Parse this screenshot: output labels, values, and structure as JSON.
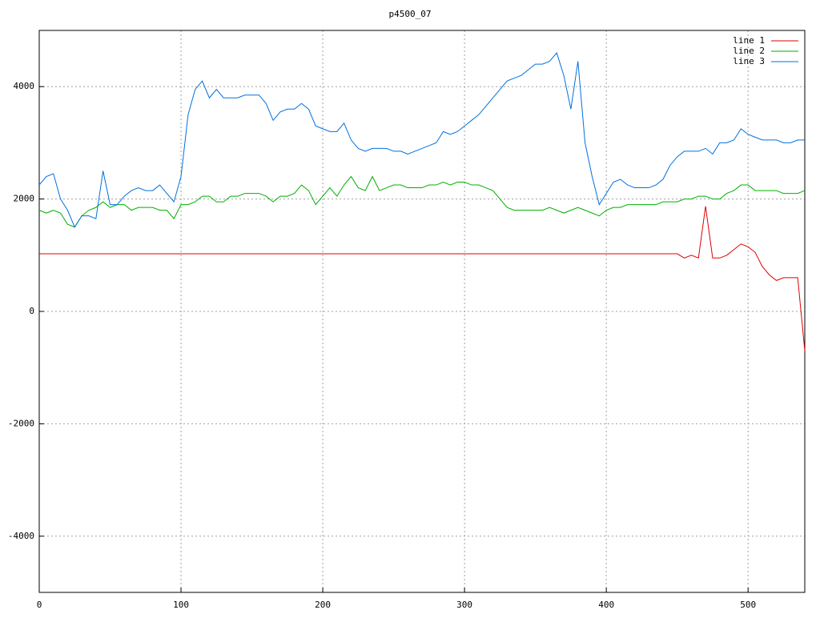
{
  "chart_data": {
    "type": "line",
    "title": "p4500_07",
    "x": [
      0,
      5,
      10,
      15,
      20,
      25,
      30,
      35,
      40,
      45,
      50,
      55,
      60,
      65,
      70,
      75,
      80,
      85,
      90,
      95,
      100,
      105,
      110,
      115,
      120,
      125,
      130,
      135,
      140,
      145,
      150,
      155,
      160,
      165,
      170,
      175,
      180,
      185,
      190,
      195,
      200,
      205,
      210,
      215,
      220,
      225,
      230,
      235,
      240,
      245,
      250,
      255,
      260,
      265,
      270,
      275,
      280,
      285,
      290,
      295,
      300,
      305,
      310,
      315,
      320,
      325,
      330,
      335,
      340,
      345,
      350,
      355,
      360,
      365,
      370,
      375,
      380,
      385,
      390,
      395,
      400,
      405,
      410,
      415,
      420,
      425,
      430,
      435,
      440,
      445,
      450,
      455,
      460,
      465,
      470,
      475,
      480,
      485,
      490,
      495,
      500,
      505,
      510,
      515,
      520,
      525,
      530,
      535,
      540
    ],
    "series": [
      {
        "name": "line 1",
        "color": "#e00000",
        "values": [
          1025,
          1025,
          1025,
          1025,
          1025,
          1025,
          1025,
          1025,
          1025,
          1025,
          1025,
          1025,
          1025,
          1025,
          1025,
          1025,
          1025,
          1025,
          1025,
          1025,
          1025,
          1025,
          1025,
          1025,
          1025,
          1025,
          1025,
          1025,
          1025,
          1025,
          1025,
          1025,
          1025,
          1025,
          1025,
          1025,
          1025,
          1025,
          1025,
          1025,
          1025,
          1025,
          1025,
          1025,
          1025,
          1025,
          1025,
          1025,
          1025,
          1025,
          1025,
          1025,
          1025,
          1025,
          1025,
          1025,
          1025,
          1025,
          1025,
          1025,
          1025,
          1025,
          1025,
          1025,
          1025,
          1025,
          1025,
          1025,
          1025,
          1025,
          1025,
          1025,
          1025,
          1025,
          1025,
          1025,
          1025,
          1025,
          1025,
          1025,
          1025,
          1025,
          1025,
          1025,
          1025,
          1025,
          1025,
          1025,
          1025,
          1025,
          1025,
          950,
          1000,
          950,
          1870,
          950,
          950,
          1000,
          1100,
          1200,
          1150,
          1050,
          800,
          650,
          550,
          600,
          600,
          600,
          -700
        ]
      },
      {
        "name": "line 2",
        "color": "#00b000",
        "values": [
          1800,
          1750,
          1800,
          1750,
          1550,
          1500,
          1700,
          1800,
          1850,
          1950,
          1850,
          1900,
          1900,
          1800,
          1850,
          1850,
          1850,
          1800,
          1800,
          1650,
          1900,
          1900,
          1950,
          2050,
          2050,
          1950,
          1950,
          2050,
          2050,
          2100,
          2100,
          2100,
          2050,
          1950,
          2050,
          2050,
          2100,
          2250,
          2150,
          1900,
          2050,
          2200,
          2050,
          2250,
          2400,
          2200,
          2150,
          2400,
          2150,
          2200,
          2250,
          2250,
          2200,
          2200,
          2200,
          2250,
          2250,
          2300,
          2250,
          2300,
          2300,
          2250,
          2250,
          2200,
          2150,
          2000,
          1850,
          1800,
          1800,
          1800,
          1800,
          1800,
          1850,
          1800,
          1750,
          1800,
          1850,
          1800,
          1750,
          1700,
          1800,
          1850,
          1850,
          1900,
          1900,
          1900,
          1900,
          1900,
          1950,
          1950,
          1950,
          2000,
          2000,
          2050,
          2050,
          2000,
          2000,
          2100,
          2150,
          2250,
          2250,
          2150,
          2150,
          2150,
          2150,
          2100,
          2100,
          2100,
          2150
        ]
      },
      {
        "name": "line 3",
        "color": "#0070e0",
        "values": [
          2250,
          2400,
          2450,
          2000,
          1800,
          1500,
          1700,
          1700,
          1650,
          2500,
          1900,
          1900,
          2050,
          2150,
          2200,
          2150,
          2150,
          2250,
          2100,
          1950,
          2400,
          3500,
          3950,
          4100,
          3800,
          3950,
          3800,
          3800,
          3800,
          3850,
          3850,
          3850,
          3700,
          3400,
          3550,
          3600,
          3600,
          3700,
          3600,
          3300,
          3250,
          3200,
          3200,
          3350,
          3050,
          2900,
          2850,
          2900,
          2900,
          2900,
          2850,
          2850,
          2800,
          2850,
          2900,
          2950,
          3000,
          3200,
          3150,
          3200,
          3300,
          3400,
          3500,
          3650,
          3800,
          3950,
          4100,
          4150,
          4200,
          4300,
          4400,
          4400,
          4450,
          4600,
          4200,
          3600,
          4450,
          3000,
          2400,
          1900,
          2100,
          2300,
          2350,
          2250,
          2200,
          2200,
          2200,
          2250,
          2350,
          2600,
          2750,
          2850,
          2850,
          2850,
          2900,
          2800,
          3000,
          3000,
          3050,
          3250,
          3150,
          3100,
          3050,
          3050,
          3050,
          3000,
          3000,
          3050,
          3050
        ]
      }
    ],
    "xlim": [
      0,
      540
    ],
    "ylim": [
      -5000,
      5000
    ],
    "xticks": [
      0,
      100,
      200,
      300,
      400,
      500
    ],
    "yticks": [
      -4000,
      -2000,
      0,
      2000,
      4000
    ],
    "grid": true,
    "legend": "top-right"
  }
}
